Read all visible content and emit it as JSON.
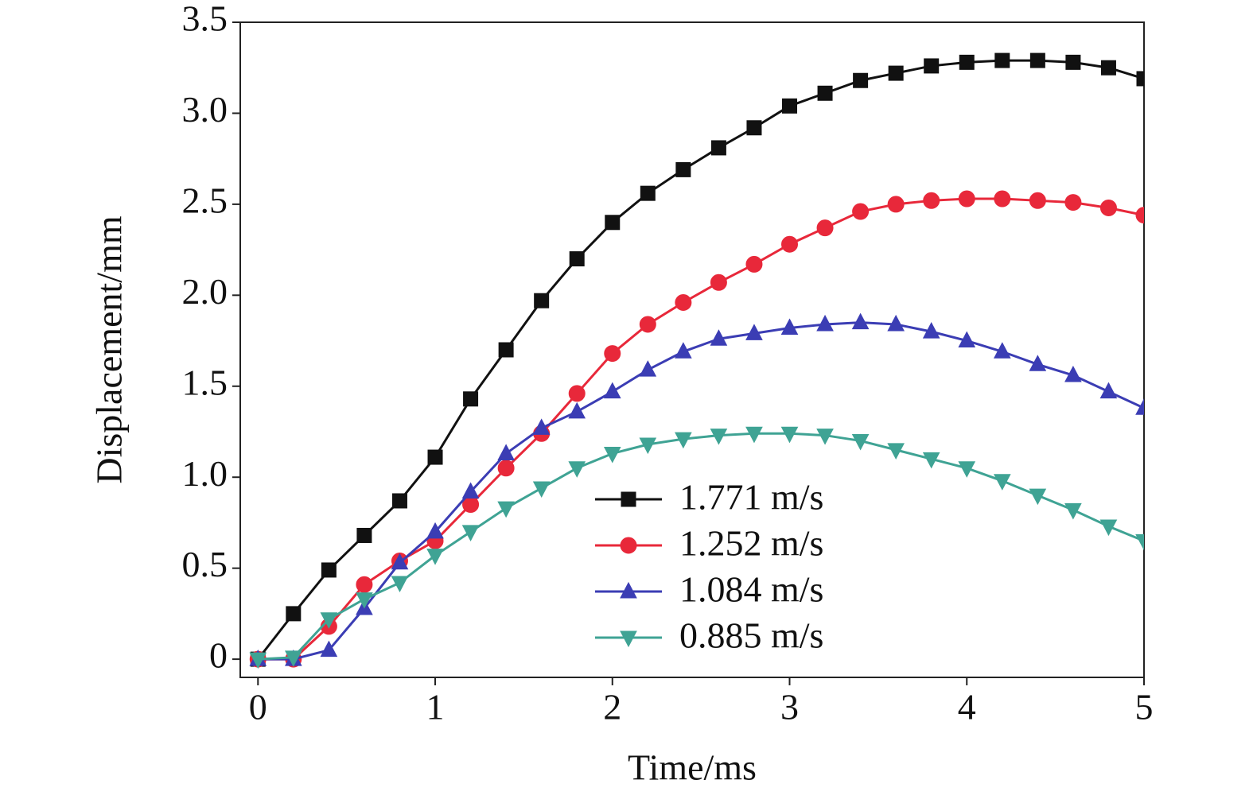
{
  "chart_data": {
    "type": "line",
    "x_label": "Time/ms",
    "y_label": "Displacement/mm",
    "x": [
      0,
      0.2,
      0.4,
      0.6,
      0.8,
      1,
      1.2,
      1.4,
      1.6,
      1.8,
      2,
      2.2,
      2.4,
      2.6,
      2.8,
      3,
      3.2,
      3.4,
      3.6,
      3.8,
      4,
      4.2,
      4.4,
      4.6,
      4.8,
      5
    ],
    "series": [
      {
        "name": "1.771 m/s",
        "color": "#111111",
        "marker": "square",
        "values": [
          0,
          0.25,
          0.49,
          0.68,
          0.87,
          1.11,
          1.43,
          1.7,
          1.97,
          2.2,
          2.4,
          2.56,
          2.69,
          2.81,
          2.92,
          3.04,
          3.11,
          3.18,
          3.22,
          3.26,
          3.28,
          3.29,
          3.29,
          3.28,
          3.25,
          3.19
        ]
      },
      {
        "name": "1.252 m/s",
        "color": "#e8283a",
        "marker": "circle",
        "values": [
          0,
          0,
          0.18,
          0.41,
          0.54,
          0.65,
          0.85,
          1.05,
          1.24,
          1.46,
          1.68,
          1.84,
          1.96,
          2.07,
          2.17,
          2.28,
          2.37,
          2.46,
          2.5,
          2.52,
          2.53,
          2.53,
          2.52,
          2.51,
          2.48,
          2.44
        ]
      },
      {
        "name": "1.084 m/s",
        "color": "#3b3db4",
        "marker": "triangle-up",
        "values": [
          0,
          0,
          0.05,
          0.28,
          0.53,
          0.7,
          0.92,
          1.13,
          1.27,
          1.36,
          1.47,
          1.59,
          1.69,
          1.76,
          1.79,
          1.82,
          1.84,
          1.85,
          1.84,
          1.8,
          1.75,
          1.69,
          1.62,
          1.56,
          1.47,
          1.38
        ]
      },
      {
        "name": "0.885 m/s",
        "color": "#3fa394",
        "marker": "triangle-down",
        "values": [
          0,
          0.01,
          0.22,
          0.33,
          0.42,
          0.57,
          0.7,
          0.83,
          0.94,
          1.05,
          1.13,
          1.18,
          1.21,
          1.23,
          1.24,
          1.24,
          1.23,
          1.2,
          1.15,
          1.1,
          1.05,
          0.98,
          0.9,
          0.82,
          0.73,
          0.65
        ]
      }
    ],
    "xlim": [
      -0.1,
      5
    ],
    "xticks": [
      0,
      1,
      2,
      3,
      4,
      5
    ],
    "ylim": [
      -0.1,
      3.5
    ],
    "yticks": [
      0,
      0.5,
      {
        "value": 1,
        "label": "1.0"
      },
      1.5,
      {
        "value": 2,
        "label": "2.0"
      },
      2.5,
      {
        "value": 3,
        "label": "3.0"
      },
      3.5
    ],
    "grid": false,
    "legend_loc": "lower center"
  }
}
